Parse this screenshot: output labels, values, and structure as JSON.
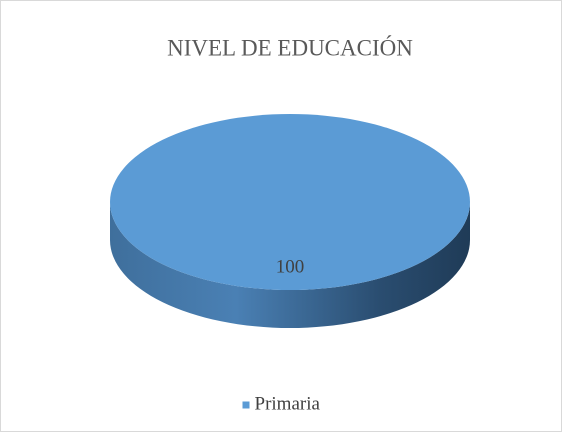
{
  "chart_data": {
    "type": "pie",
    "title": "NIVEL DE EDUCACIÓN",
    "categories": [
      "Primaria"
    ],
    "values": [
      100
    ],
    "colors": [
      "#5b9bd5"
    ],
    "legend": "bottom"
  }
}
